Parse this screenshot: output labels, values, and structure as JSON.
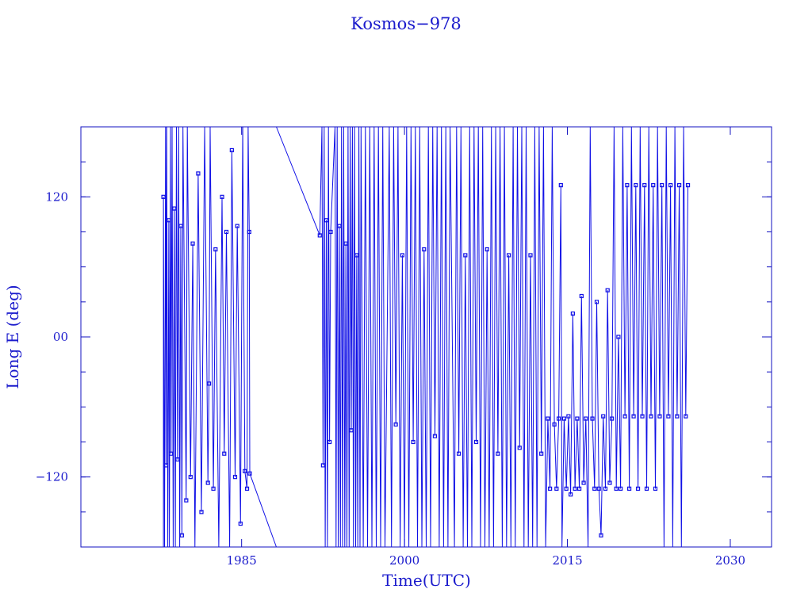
{
  "chart_data": {
    "type": "line",
    "title": "Kosmos−978",
    "xlabel": "Time(UTC)",
    "ylabel": "Long E (deg)",
    "xlim": [
      1970.2,
      2033.8
    ],
    "ylim": [
      -180,
      180
    ],
    "x_ticks": [
      {
        "value": 1985,
        "label": "1985"
      },
      {
        "value": 2000,
        "label": "2000"
      },
      {
        "value": 2015,
        "label": "2015"
      },
      {
        "value": 2030,
        "label": "2030"
      }
    ],
    "y_ticks": [
      {
        "value": 120,
        "label": "120"
      },
      {
        "value": 0,
        "label": "00"
      },
      {
        "value": -120,
        "label": "−120"
      }
    ],
    "y_minor_step": 30,
    "grid": false,
    "color": "#1010e6",
    "markers": "open-square",
    "series": [
      {
        "points": [
          [
            1977.8,
            -180
          ],
          [
            1977.8,
            120
          ],
          [
            1977.9,
            -180
          ],
          [
            1978.0,
            180
          ],
          [
            1978.05,
            -110
          ],
          [
            1978.1,
            180
          ],
          [
            1978.2,
            -180
          ],
          [
            1978.3,
            100
          ],
          [
            1978.35,
            -180
          ],
          [
            1978.45,
            180
          ],
          [
            1978.5,
            -100
          ],
          [
            1978.6,
            180
          ],
          [
            1978.7,
            -180
          ],
          [
            1978.8,
            110
          ],
          [
            1978.9,
            -180
          ],
          [
            1979.0,
            180
          ],
          [
            1979.1,
            -105
          ],
          [
            1979.2,
            180
          ],
          [
            1979.3,
            -180
          ],
          [
            1979.4,
            95
          ],
          [
            1979.5,
            -170
          ],
          [
            1979.6,
            180
          ],
          [
            1979.9,
            -140
          ],
          [
            1980.0,
            180
          ],
          [
            1980.3,
            -120
          ],
          [
            1980.5,
            80
          ],
          [
            1980.7,
            -180
          ],
          [
            1981.0,
            140
          ],
          [
            1981.3,
            -150
          ],
          [
            1981.6,
            180
          ],
          [
            1981.9,
            -125
          ],
          [
            1982.0,
            -40
          ],
          [
            1982.1,
            180
          ],
          [
            1982.4,
            -130
          ],
          [
            1982.6,
            75
          ],
          [
            1982.9,
            -180
          ],
          [
            1983.2,
            120
          ],
          [
            1983.4,
            -100
          ],
          [
            1983.6,
            90
          ],
          [
            1983.9,
            -180
          ],
          [
            1984.1,
            160
          ],
          [
            1984.4,
            -120
          ],
          [
            1984.6,
            95
          ],
          [
            1984.9,
            -160
          ],
          [
            1985.1,
            180
          ],
          [
            1985.3,
            -115
          ],
          [
            1985.5,
            -130
          ],
          [
            1985.6,
            180
          ],
          [
            1985.7,
            90
          ],
          [
            1985.75,
            -117
          ],
          [
            1988.2,
            -180
          ],
          null,
          [
            1988.2,
            180
          ],
          [
            1992.2,
            87
          ],
          [
            1992.4,
            180
          ],
          [
            1992.5,
            -110
          ],
          [
            1992.6,
            180
          ],
          [
            1992.7,
            -180
          ],
          [
            1992.8,
            100
          ],
          [
            1992.9,
            -180
          ],
          [
            1993.0,
            180
          ],
          [
            1993.1,
            -90
          ],
          [
            1993.2,
            90
          ],
          [
            1993.6,
            180
          ],
          [
            1993.7,
            -180
          ],
          [
            1993.8,
            180
          ],
          [
            1993.9,
            -180
          ],
          [
            1994.0,
            95
          ],
          [
            1994.1,
            -180
          ],
          [
            1994.2,
            180
          ],
          [
            1994.3,
            -180
          ],
          [
            1994.4,
            180
          ],
          [
            1994.5,
            -180
          ],
          [
            1994.6,
            80
          ],
          [
            1994.7,
            -180
          ],
          [
            1994.8,
            180
          ],
          [
            1994.9,
            -180
          ],
          [
            1995.0,
            180
          ],
          [
            1995.1,
            -80
          ],
          [
            1995.2,
            180
          ],
          [
            1995.3,
            -180
          ],
          [
            1995.4,
            180
          ],
          [
            1995.5,
            -180
          ],
          [
            1995.6,
            70
          ],
          [
            1995.7,
            -180
          ],
          [
            1995.8,
            180
          ],
          [
            1995.9,
            -180
          ],
          [
            1996.0,
            180
          ],
          [
            1996.2,
            -180
          ],
          [
            1996.4,
            180
          ],
          [
            1996.6,
            -180
          ],
          [
            1996.8,
            180
          ],
          [
            1997.0,
            -180
          ],
          [
            1997.2,
            180
          ],
          [
            1997.4,
            -180
          ],
          [
            1997.6,
            180
          ],
          [
            1997.8,
            -180
          ],
          [
            1998.0,
            180
          ],
          [
            1998.2,
            -180
          ],
          [
            1998.6,
            180
          ],
          [
            1998.8,
            -180
          ],
          [
            1999.0,
            180
          ],
          [
            1999.2,
            -75
          ],
          [
            1999.4,
            180
          ],
          [
            1999.6,
            -180
          ],
          [
            1999.8,
            70
          ],
          [
            2000.0,
            -180
          ],
          [
            2000.2,
            180
          ],
          [
            2000.4,
            -180
          ],
          [
            2000.6,
            180
          ],
          [
            2000.8,
            -90
          ],
          [
            2001.0,
            180
          ],
          [
            2001.2,
            -180
          ],
          [
            2001.4,
            180
          ],
          [
            2001.6,
            -180
          ],
          [
            2001.8,
            75
          ],
          [
            2002.0,
            -180
          ],
          [
            2002.2,
            180
          ],
          [
            2002.4,
            -180
          ],
          [
            2002.6,
            180
          ],
          [
            2002.8,
            -85
          ],
          [
            2003.0,
            180
          ],
          [
            2003.2,
            -180
          ],
          [
            2003.4,
            180
          ],
          [
            2003.6,
            -180
          ],
          [
            2003.8,
            180
          ],
          [
            2004.0,
            -180
          ],
          [
            2004.2,
            180
          ],
          [
            2004.6,
            -180
          ],
          [
            2004.8,
            180
          ],
          [
            2005.0,
            -100
          ],
          [
            2005.2,
            180
          ],
          [
            2005.4,
            -180
          ],
          [
            2005.6,
            70
          ],
          [
            2005.8,
            -180
          ],
          [
            2006.0,
            180
          ],
          [
            2006.2,
            -180
          ],
          [
            2006.4,
            180
          ],
          [
            2006.6,
            -90
          ],
          [
            2006.8,
            180
          ],
          [
            2007.0,
            -180
          ],
          [
            2007.2,
            180
          ],
          [
            2007.4,
            -180
          ],
          [
            2007.6,
            75
          ],
          [
            2007.8,
            -180
          ],
          [
            2008.0,
            180
          ],
          [
            2008.2,
            -180
          ],
          [
            2008.4,
            180
          ],
          [
            2008.6,
            -100
          ],
          [
            2008.8,
            180
          ],
          [
            2009.0,
            -180
          ],
          [
            2009.2,
            180
          ],
          [
            2009.4,
            -180
          ],
          [
            2009.6,
            70
          ],
          [
            2009.8,
            -180
          ],
          [
            2010.0,
            180
          ],
          [
            2010.2,
            -180
          ],
          [
            2010.4,
            180
          ],
          [
            2010.6,
            -95
          ],
          [
            2010.8,
            180
          ],
          [
            2011.0,
            -180
          ],
          [
            2011.2,
            180
          ],
          [
            2011.4,
            -180
          ],
          [
            2011.6,
            70
          ],
          [
            2011.8,
            -180
          ],
          [
            2012.0,
            180
          ],
          [
            2012.2,
            -180
          ],
          [
            2012.4,
            180
          ],
          [
            2012.6,
            -100
          ],
          [
            2012.8,
            180
          ],
          [
            2013.0,
            -180
          ],
          [
            2013.2,
            -70
          ],
          [
            2013.4,
            -130
          ],
          [
            2013.6,
            180
          ],
          [
            2013.8,
            -75
          ],
          [
            2014.0,
            -130
          ],
          [
            2014.2,
            -70
          ],
          [
            2014.4,
            130
          ],
          [
            2014.5,
            -180
          ],
          [
            2014.7,
            -70
          ],
          [
            2014.9,
            -130
          ],
          [
            2015.1,
            -68
          ],
          [
            2015.3,
            -135
          ],
          [
            2015.5,
            20
          ],
          [
            2015.7,
            -130
          ],
          [
            2015.9,
            -70
          ],
          [
            2016.1,
            -130
          ],
          [
            2016.3,
            35
          ],
          [
            2016.5,
            -125
          ],
          [
            2016.7,
            -70
          ],
          [
            2016.9,
            -180
          ],
          [
            2017.1,
            180
          ],
          [
            2017.3,
            -70
          ],
          [
            2017.5,
            -130
          ],
          [
            2017.7,
            30
          ],
          [
            2017.9,
            -130
          ],
          [
            2018.1,
            -170
          ],
          [
            2018.3,
            -68
          ],
          [
            2018.5,
            -130
          ],
          [
            2018.7,
            40
          ],
          [
            2018.9,
            -125
          ],
          [
            2019.1,
            -70
          ],
          [
            2019.3,
            180
          ],
          [
            2019.5,
            -130
          ],
          [
            2019.7,
            0
          ],
          [
            2019.9,
            -130
          ],
          [
            2020.1,
            180
          ],
          [
            2020.3,
            -68
          ],
          [
            2020.5,
            130
          ],
          [
            2020.7,
            -130
          ],
          [
            2020.9,
            180
          ],
          [
            2021.1,
            -68
          ],
          [
            2021.3,
            130
          ],
          [
            2021.5,
            -130
          ],
          [
            2021.7,
            180
          ],
          [
            2021.9,
            -68
          ],
          [
            2022.1,
            130
          ],
          [
            2022.3,
            -130
          ],
          [
            2022.5,
            180
          ],
          [
            2022.7,
            -68
          ],
          [
            2022.9,
            130
          ],
          [
            2023.1,
            -130
          ],
          [
            2023.3,
            180
          ],
          [
            2023.5,
            -68
          ],
          [
            2023.7,
            130
          ],
          [
            2023.9,
            -180
          ],
          [
            2024.1,
            180
          ],
          [
            2024.3,
            -68
          ],
          [
            2024.5,
            130
          ],
          [
            2024.7,
            -180
          ],
          [
            2024.9,
            180
          ],
          [
            2025.1,
            -68
          ],
          [
            2025.3,
            130
          ],
          [
            2025.5,
            -180
          ],
          [
            2025.7,
            180
          ],
          [
            2025.9,
            -68
          ],
          [
            2026.1,
            130
          ]
        ]
      }
    ]
  }
}
